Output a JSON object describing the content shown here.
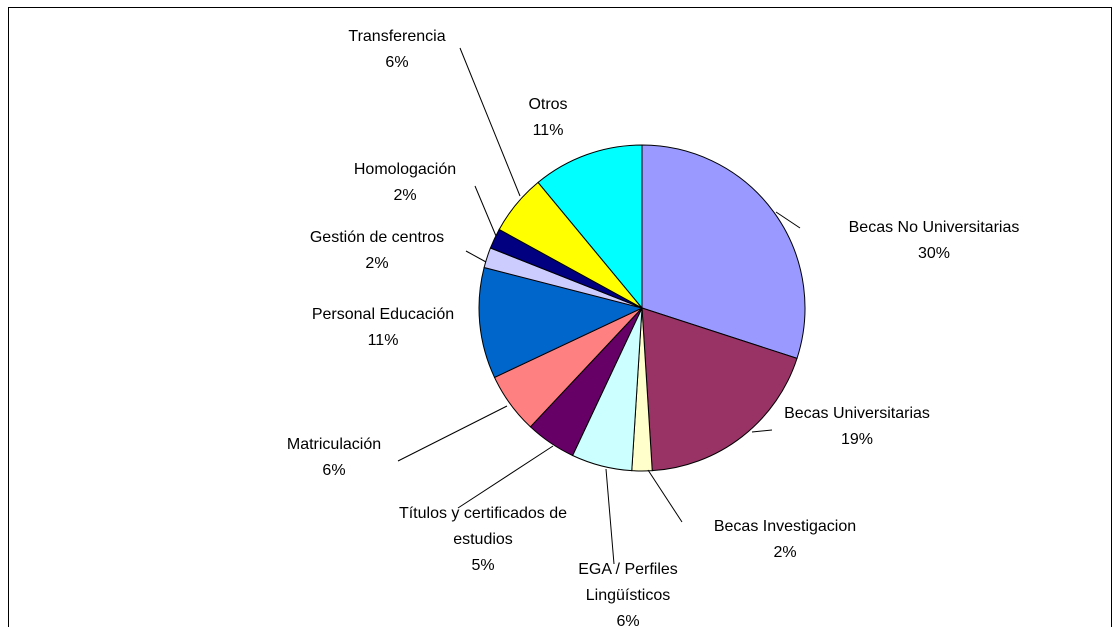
{
  "chart_data": {
    "type": "pie",
    "categories": [
      "Becas No Universitarias",
      "Becas Universitarias",
      "Becas Investigacion",
      "EGA / Perfiles Lingüísticos",
      "Títulos y certificados de estudios",
      "Matriculación",
      "Personal Educación",
      "Gestión de centros",
      "Homologación",
      "Transferencia",
      "Otros"
    ],
    "values": [
      30,
      19,
      2,
      6,
      5,
      6,
      11,
      2,
      2,
      6,
      11
    ],
    "value_labels": [
      "30%",
      "19%",
      "2%",
      "6%",
      "5%",
      "6%",
      "11%",
      "2%",
      "2%",
      "6%",
      "11%"
    ],
    "colors": [
      "#9999ff",
      "#993366",
      "#ffffcc",
      "#ccffff",
      "#660066",
      "#ff8080",
      "#0066cc",
      "#ccccff",
      "#000080",
      "#ffff00",
      "#00ffff"
    ]
  }
}
